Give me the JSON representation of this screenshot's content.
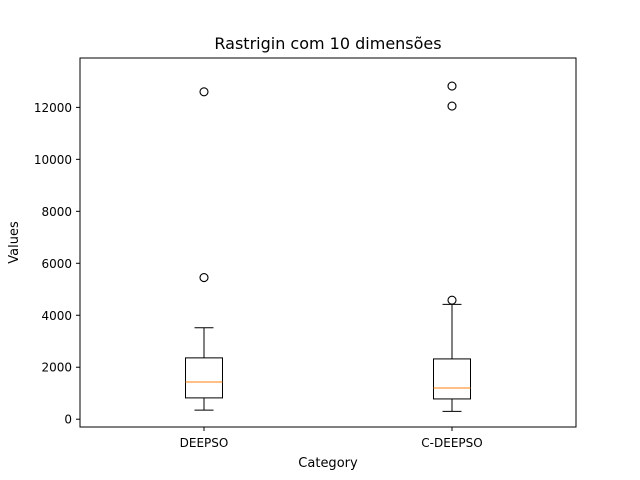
{
  "chart_data": {
    "type": "box",
    "title": "Rastrigin com 10 dimensões",
    "xlabel": "Category",
    "ylabel": "Values",
    "categories": [
      "DEEPSO",
      "C-DEEPSO"
    ],
    "ylim": [
      -300,
      13900
    ],
    "yticks": [
      0,
      2000,
      4000,
      6000,
      8000,
      10000,
      12000
    ],
    "grid": false,
    "boxes": [
      {
        "name": "DEEPSO",
        "whisker_low": 350,
        "q1": 820,
        "median": 1430,
        "q3": 2360,
        "whisker_high": 3520,
        "outliers": [
          5450,
          12600
        ]
      },
      {
        "name": "C-DEEPSO",
        "whisker_low": 300,
        "q1": 780,
        "median": 1200,
        "q3": 2320,
        "whisker_high": 4420,
        "outliers": [
          4580,
          12050,
          12820
        ]
      }
    ],
    "colors": {
      "box": "#000000",
      "median": "#ff7f0e",
      "outlier_edge": "#000000"
    }
  }
}
